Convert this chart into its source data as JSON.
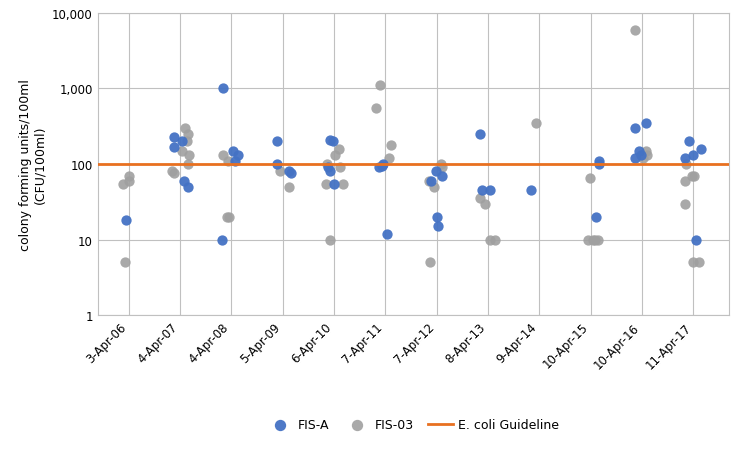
{
  "title": "",
  "ylabel": "colony forming units/100ml\n(CFU/100ml)",
  "guideline_value": 100,
  "guideline_color": "#E87020",
  "fis_a_color": "#4472C4",
  "fis03_color": "#A0A0A0",
  "background_color": "#FFFFFF",
  "grid_color": "#C0C0C0",
  "x_labels": [
    "3-Apr-06",
    "4-Apr-07",
    "4-Apr-08",
    "5-Apr-09",
    "6-Apr-10",
    "7-Apr-11",
    "7-Apr-12",
    "8-Apr-13",
    "9-Apr-14",
    "10-Apr-15",
    "10-Apr-16",
    "11-Apr-17"
  ],
  "x_positions": [
    2006,
    2007,
    2008,
    2009,
    2010,
    2011,
    2012,
    2013,
    2014,
    2015,
    2016,
    2017
  ],
  "fis_a_data": [
    [
      2006,
      18
    ],
    [
      2007,
      50
    ],
    [
      2007,
      60
    ],
    [
      2007,
      200
    ],
    [
      2007,
      230
    ],
    [
      2007,
      170
    ],
    [
      2008,
      1000
    ],
    [
      2008,
      130
    ],
    [
      2008,
      150
    ],
    [
      2008,
      110
    ],
    [
      2008,
      10
    ],
    [
      2009,
      75
    ],
    [
      2009,
      80
    ],
    [
      2009,
      100
    ],
    [
      2009,
      200
    ],
    [
      2010,
      90
    ],
    [
      2010,
      80
    ],
    [
      2010,
      55
    ],
    [
      2010,
      200
    ],
    [
      2010,
      210
    ],
    [
      2011,
      12
    ],
    [
      2011,
      90
    ],
    [
      2011,
      95
    ],
    [
      2011,
      100
    ],
    [
      2012,
      80
    ],
    [
      2012,
      70
    ],
    [
      2012,
      60
    ],
    [
      2012,
      20
    ],
    [
      2012,
      15
    ],
    [
      2013,
      250
    ],
    [
      2013,
      45
    ],
    [
      2013,
      45
    ],
    [
      2014,
      45
    ],
    [
      2015,
      110
    ],
    [
      2015,
      100
    ],
    [
      2015,
      20
    ],
    [
      2016,
      150
    ],
    [
      2016,
      300
    ],
    [
      2016,
      350
    ],
    [
      2016,
      130
    ],
    [
      2016,
      120
    ],
    [
      2017,
      130
    ],
    [
      2017,
      120
    ],
    [
      2017,
      160
    ],
    [
      2017,
      200
    ],
    [
      2017,
      10
    ]
  ],
  "fis03_data": [
    [
      2006,
      5
    ],
    [
      2006,
      60
    ],
    [
      2006,
      70
    ],
    [
      2006,
      55
    ],
    [
      2007,
      130
    ],
    [
      2007,
      300
    ],
    [
      2007,
      250
    ],
    [
      2007,
      200
    ],
    [
      2007,
      150
    ],
    [
      2007,
      100
    ],
    [
      2007,
      80
    ],
    [
      2007,
      75
    ],
    [
      2008,
      130
    ],
    [
      2008,
      110
    ],
    [
      2008,
      20
    ],
    [
      2008,
      20
    ],
    [
      2009,
      50
    ],
    [
      2009,
      80
    ],
    [
      2010,
      10
    ],
    [
      2010,
      130
    ],
    [
      2010,
      100
    ],
    [
      2010,
      90
    ],
    [
      2010,
      55
    ],
    [
      2010,
      55
    ],
    [
      2010,
      160
    ],
    [
      2011,
      1100
    ],
    [
      2011,
      550
    ],
    [
      2011,
      180
    ],
    [
      2011,
      120
    ],
    [
      2012,
      100
    ],
    [
      2012,
      90
    ],
    [
      2012,
      60
    ],
    [
      2012,
      50
    ],
    [
      2012,
      5
    ],
    [
      2013,
      10
    ],
    [
      2013,
      10
    ],
    [
      2013,
      30
    ],
    [
      2013,
      35
    ],
    [
      2014,
      350
    ],
    [
      2015,
      10
    ],
    [
      2015,
      10
    ],
    [
      2015,
      10
    ],
    [
      2015,
      10
    ],
    [
      2015,
      65
    ],
    [
      2016,
      5800
    ],
    [
      2016,
      150
    ],
    [
      2016,
      130
    ],
    [
      2016,
      120
    ],
    [
      2017,
      5
    ],
    [
      2017,
      5
    ],
    [
      2017,
      70
    ],
    [
      2017,
      70
    ],
    [
      2017,
      60
    ],
    [
      2017,
      100
    ],
    [
      2017,
      30
    ]
  ]
}
